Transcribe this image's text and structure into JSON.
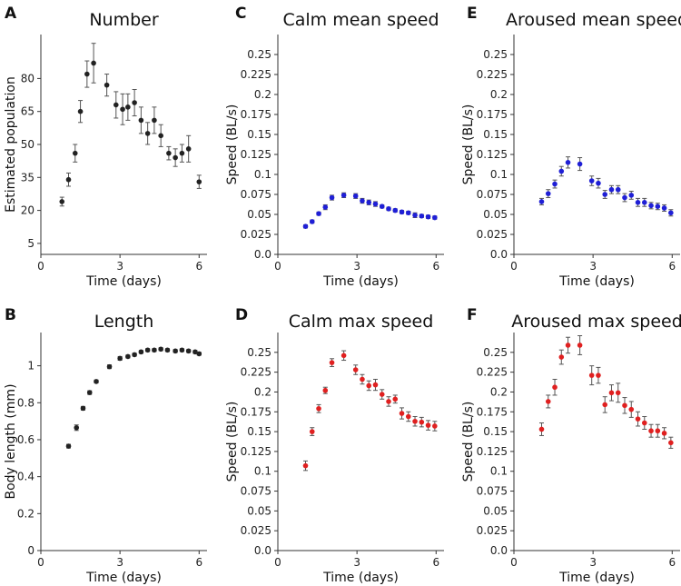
{
  "chart_data": [
    {
      "id": "A",
      "panel_label": "A",
      "type": "scatter",
      "title": "Number",
      "xlabel": "Time (days)",
      "ylabel": "Estimated population",
      "xlim": [
        0,
        6.3
      ],
      "ylim": [
        0,
        100
      ],
      "xticks": [
        0,
        3,
        6
      ],
      "yticks": [
        5,
        20,
        35,
        50,
        65,
        80
      ],
      "color": "#222222",
      "series": [
        {
          "name": "Number",
          "x": [
            0.8,
            1.05,
            1.3,
            1.5,
            1.75,
            2.0,
            2.5,
            2.85,
            3.1,
            3.3,
            3.55,
            3.8,
            4.05,
            4.3,
            4.55,
            4.85,
            5.1,
            5.35,
            5.6,
            6.0
          ],
          "y": [
            24,
            34,
            46,
            65,
            82,
            87,
            77,
            68,
            66,
            67,
            69,
            61,
            55,
            61,
            54,
            46,
            44,
            46,
            48,
            33
          ],
          "err": [
            2,
            3,
            4,
            5,
            6,
            9,
            5,
            6,
            7,
            6,
            6,
            6,
            5,
            6,
            5,
            3,
            4,
            4,
            6,
            3
          ]
        }
      ]
    },
    {
      "id": "B",
      "panel_label": "B",
      "type": "scatter",
      "title": "Length",
      "xlabel": "Time (days)",
      "ylabel": "Body length (mm)",
      "xlim": [
        0,
        6.3
      ],
      "ylim": [
        0,
        1.18
      ],
      "xticks": [
        0,
        3,
        6
      ],
      "yticks": [
        0,
        0.2,
        0.4,
        0.6,
        0.8,
        1
      ],
      "color": "#222222",
      "series": [
        {
          "name": "Length",
          "x": [
            1.05,
            1.35,
            1.6,
            1.85,
            2.1,
            2.6,
            3.0,
            3.3,
            3.55,
            3.8,
            4.05,
            4.3,
            4.55,
            4.8,
            5.1,
            5.35,
            5.6,
            5.85,
            6.0
          ],
          "y": [
            0.565,
            0.665,
            0.77,
            0.855,
            0.915,
            0.995,
            1.04,
            1.05,
            1.06,
            1.075,
            1.085,
            1.085,
            1.09,
            1.085,
            1.08,
            1.085,
            1.08,
            1.075,
            1.065
          ],
          "err": [
            0.01,
            0.015,
            0.01,
            0.01,
            0.008,
            0.01,
            0.01,
            0.008,
            0.008,
            0.008,
            0.008,
            0.008,
            0.008,
            0.008,
            0.008,
            0.008,
            0.008,
            0.008,
            0.008
          ]
        }
      ]
    },
    {
      "id": "C",
      "panel_label": "C",
      "type": "scatter",
      "title": "Calm mean speed",
      "xlabel": "Time (days)",
      "ylabel": "Speed (BL/s)",
      "xlim": [
        0,
        6.3
      ],
      "ylim": [
        0,
        0.275
      ],
      "xticks": [
        0,
        3,
        6
      ],
      "yticks": [
        0.0,
        0.025,
        0.05,
        0.075,
        0.1,
        0.125,
        0.15,
        0.175,
        0.2,
        0.225,
        0.25
      ],
      "ytick_labels": [
        "0.0",
        "0.025",
        "0.05",
        "0.075",
        "0.1",
        "0.125",
        "0.15",
        "0.175",
        "0.2",
        "0.225",
        "0.25"
      ],
      "color": "#1f1fd6",
      "series": [
        {
          "name": "Calm mean speed",
          "x": [
            1.05,
            1.3,
            1.55,
            1.8,
            2.05,
            2.5,
            2.95,
            3.2,
            3.45,
            3.7,
            3.95,
            4.2,
            4.45,
            4.7,
            4.95,
            5.2,
            5.45,
            5.7,
            5.95
          ],
          "y": [
            0.035,
            0.041,
            0.051,
            0.059,
            0.071,
            0.074,
            0.073,
            0.067,
            0.065,
            0.063,
            0.06,
            0.057,
            0.055,
            0.053,
            0.052,
            0.049,
            0.048,
            0.047,
            0.046
          ],
          "err": [
            0.002,
            0.002,
            0.002,
            0.003,
            0.003,
            0.003,
            0.003,
            0.003,
            0.003,
            0.003,
            0.002,
            0.002,
            0.002,
            0.002,
            0.002,
            0.003,
            0.002,
            0.002,
            0.002
          ]
        }
      ]
    },
    {
      "id": "D",
      "panel_label": "D",
      "type": "scatter",
      "title": "Calm max speed",
      "xlabel": "Time (days)",
      "ylabel": "Speed (BL/s)",
      "xlim": [
        0,
        6.3
      ],
      "ylim": [
        0,
        0.275
      ],
      "xticks": [
        0,
        3,
        6
      ],
      "yticks": [
        0.0,
        0.025,
        0.05,
        0.075,
        0.1,
        0.125,
        0.15,
        0.175,
        0.2,
        0.225,
        0.25
      ],
      "ytick_labels": [
        "0.0",
        "0.025",
        "0.05",
        "0.075",
        "0.1",
        "0.125",
        "0.15",
        "0.175",
        "0.2",
        "0.225",
        "0.25"
      ],
      "color": "#e02020",
      "series": [
        {
          "name": "Calm max speed",
          "x": [
            1.05,
            1.3,
            1.55,
            1.8,
            2.05,
            2.5,
            2.95,
            3.2,
            3.45,
            3.7,
            3.95,
            4.2,
            4.45,
            4.7,
            4.95,
            5.2,
            5.45,
            5.7,
            5.95
          ],
          "y": [
            0.107,
            0.15,
            0.179,
            0.202,
            0.237,
            0.246,
            0.228,
            0.216,
            0.208,
            0.209,
            0.197,
            0.188,
            0.191,
            0.173,
            0.169,
            0.163,
            0.162,
            0.158,
            0.157
          ],
          "err": [
            0.006,
            0.005,
            0.005,
            0.004,
            0.005,
            0.006,
            0.006,
            0.006,
            0.006,
            0.007,
            0.006,
            0.006,
            0.005,
            0.007,
            0.006,
            0.006,
            0.006,
            0.006,
            0.006
          ]
        }
      ]
    },
    {
      "id": "E",
      "panel_label": "E",
      "type": "scatter",
      "title": "Aroused mean speed",
      "xlabel": "Time (days)",
      "ylabel": "Speed (BL/s)",
      "xlim": [
        0,
        6.3
      ],
      "ylim": [
        0,
        0.275
      ],
      "xticks": [
        0,
        3,
        6
      ],
      "yticks": [
        0.0,
        0.025,
        0.05,
        0.075,
        0.1,
        0.125,
        0.15,
        0.175,
        0.2,
        0.225,
        0.25
      ],
      "ytick_labels": [
        "0.0",
        "0.025",
        "0.05",
        "0.075",
        "0.1",
        "0.125",
        "0.15",
        "0.175",
        "0.2",
        "0.225",
        "0.25"
      ],
      "color": "#1f1fd6",
      "series": [
        {
          "name": "Aroused mean speed",
          "x": [
            1.05,
            1.3,
            1.55,
            1.8,
            2.05,
            2.5,
            2.95,
            3.2,
            3.45,
            3.7,
            3.95,
            4.2,
            4.45,
            4.7,
            4.95,
            5.2,
            5.45,
            5.7,
            5.95
          ],
          "y": [
            0.066,
            0.076,
            0.088,
            0.104,
            0.115,
            0.113,
            0.092,
            0.089,
            0.075,
            0.081,
            0.081,
            0.071,
            0.074,
            0.065,
            0.065,
            0.061,
            0.06,
            0.058,
            0.052
          ],
          "err": [
            0.004,
            0.005,
            0.005,
            0.006,
            0.007,
            0.008,
            0.006,
            0.006,
            0.005,
            0.005,
            0.005,
            0.005,
            0.005,
            0.005,
            0.005,
            0.004,
            0.004,
            0.004,
            0.004
          ]
        }
      ]
    },
    {
      "id": "F",
      "panel_label": "F",
      "type": "scatter",
      "title": "Aroused max speed",
      "xlabel": "Time (days)",
      "ylabel": "Speed (BL/s)",
      "xlim": [
        0,
        6.3
      ],
      "ylim": [
        0,
        0.275
      ],
      "xticks": [
        0,
        3,
        6
      ],
      "yticks": [
        0.0,
        0.025,
        0.05,
        0.075,
        0.1,
        0.125,
        0.15,
        0.175,
        0.2,
        0.225,
        0.25
      ],
      "ytick_labels": [
        "0.0",
        "0.025",
        "0.05",
        "0.075",
        "0.1",
        "0.125",
        "0.15",
        "0.175",
        "0.2",
        "0.225",
        "0.25"
      ],
      "color": "#e02020",
      "series": [
        {
          "name": "Aroused max speed",
          "x": [
            1.05,
            1.3,
            1.55,
            1.8,
            2.05,
            2.5,
            2.95,
            3.2,
            3.45,
            3.7,
            3.95,
            4.2,
            4.45,
            4.7,
            4.95,
            5.2,
            5.45,
            5.7,
            5.95
          ],
          "y": [
            0.153,
            0.188,
            0.206,
            0.244,
            0.259,
            0.259,
            0.221,
            0.221,
            0.184,
            0.199,
            0.199,
            0.183,
            0.178,
            0.166,
            0.161,
            0.151,
            0.151,
            0.148,
            0.136
          ],
          "err": [
            0.008,
            0.008,
            0.01,
            0.009,
            0.01,
            0.012,
            0.012,
            0.01,
            0.01,
            0.01,
            0.012,
            0.01,
            0.01,
            0.009,
            0.008,
            0.008,
            0.008,
            0.007,
            0.007
          ]
        }
      ]
    }
  ]
}
